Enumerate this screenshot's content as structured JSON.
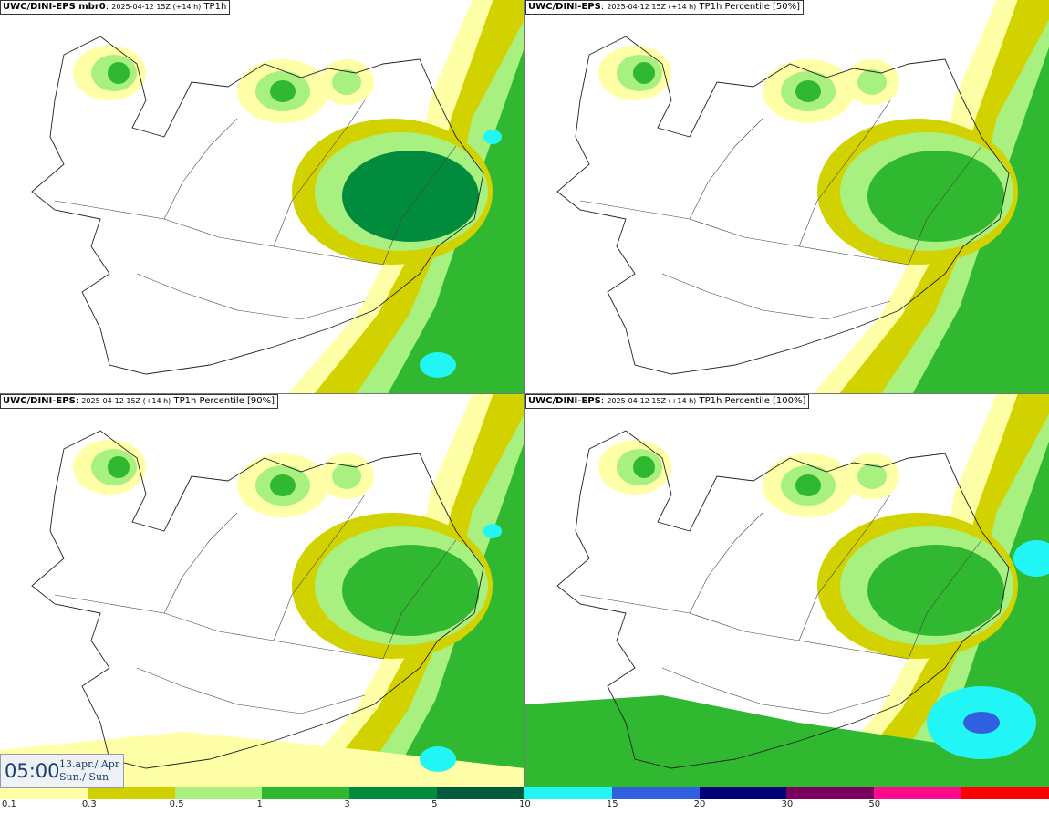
{
  "panels": [
    {
      "model": "UWC/DINI-EPS mbr0",
      "run": "2025-04-12 15Z (+14 h)",
      "product": "TP1h"
    },
    {
      "model": "UWC/DINI-EPS",
      "run": "2025-04-12 15Z (+14 h)",
      "product": "TP1h Percentile [50%]"
    },
    {
      "model": "UWC/DINI-EPS",
      "run": "2025-04-12 15Z (+14 h)",
      "product": "TP1h Percentile [90%]"
    },
    {
      "model": "UWC/DINI-EPS",
      "run": "2025-04-12 15Z (+14 h)",
      "product": "TP1h Percentile [100%]"
    }
  ],
  "time_box": {
    "time": "05:00",
    "date": "13.apr./ Apr",
    "weekday": "Sun./ Sun"
  },
  "legend": {
    "labels": [
      "0.1",
      "0.3",
      "0.5",
      "1",
      "3",
      "5",
      "10",
      "15",
      "20",
      "30",
      "50"
    ],
    "colors": [
      "#ffffa8",
      "#d0d000",
      "#a8f080",
      "#30b830",
      "#008c3c",
      "#005a3c",
      "#22f5f5",
      "#3060e0",
      "#000078",
      "#7a0060",
      "#ff0a8c",
      "#ff0000"
    ]
  },
  "colors": {
    "lt_yellow": "#ffffa8",
    "olive": "#d2d200",
    "lt_green": "#a8f080",
    "green": "#30b830",
    "dk_green": "#008c3c",
    "deep_green": "#005a3c",
    "cyan": "#22f5f5",
    "blue": "#3060e0"
  }
}
